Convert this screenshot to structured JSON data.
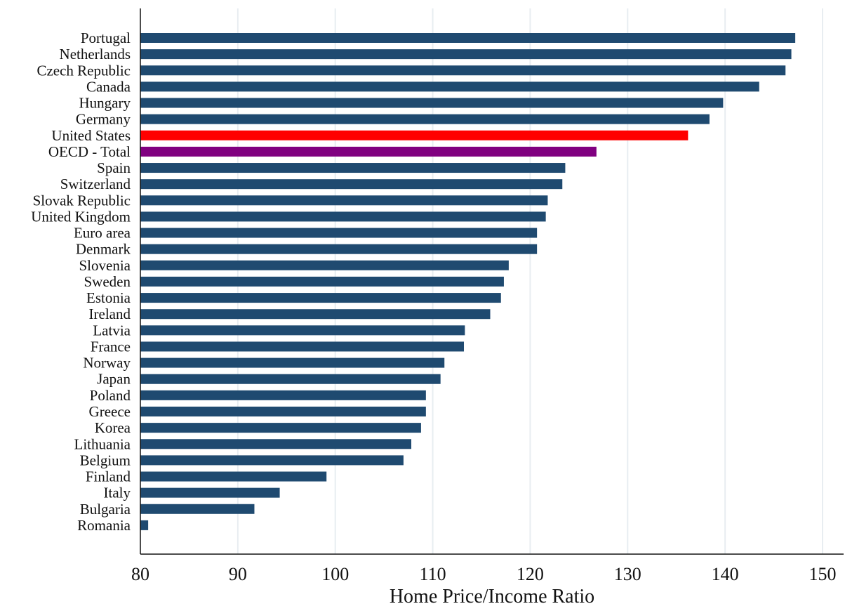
{
  "chart_data": {
    "type": "bar",
    "orientation": "horizontal",
    "title": "",
    "xlabel": "Home Price/Income Ratio",
    "ylabel": "",
    "xlim": [
      80,
      150
    ],
    "xticks": [
      80,
      90,
      100,
      110,
      120,
      130,
      140,
      150
    ],
    "grid": "vertical",
    "legend": "none",
    "colors": {
      "default": "#1f4a70",
      "United States": "#ff0000",
      "OECD - Total": "#800080"
    },
    "categories": [
      "Portugal",
      "Netherlands",
      "Czech Republic",
      "Canada",
      "Hungary",
      "Germany",
      "United States",
      "OECD - Total",
      "Spain",
      "Switzerland",
      "Slovak Republic",
      "United Kingdom",
      "Euro area",
      "Denmark",
      "Slovenia",
      "Sweden",
      "Estonia",
      "Ireland",
      "Latvia",
      "France",
      "Norway",
      "Japan",
      "Poland",
      "Greece",
      "Korea",
      "Lithuania",
      "Belgium",
      "Finland",
      "Italy",
      "Bulgaria",
      "Romania"
    ],
    "values": [
      147.2,
      146.8,
      146.2,
      143.5,
      139.8,
      138.4,
      136.2,
      126.8,
      123.6,
      123.3,
      121.8,
      121.6,
      120.7,
      120.7,
      117.8,
      117.3,
      117.0,
      115.9,
      113.3,
      113.2,
      111.2,
      110.8,
      109.3,
      109.3,
      108.8,
      107.8,
      107.0,
      99.1,
      94.3,
      91.7,
      80.8
    ]
  }
}
